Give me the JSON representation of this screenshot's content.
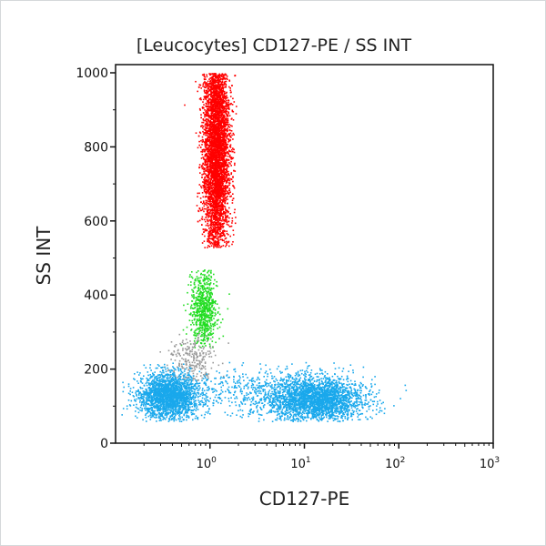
{
  "chart_data": {
    "type": "scatter",
    "title": "[Leucocytes] CD127-PE / SS INT",
    "xlabel": "CD127-PE",
    "ylabel": "SS INT",
    "x_scale": "log",
    "xlim": [
      0.1,
      1000
    ],
    "ylim": [
      0,
      1000
    ],
    "x_ticks": [
      {
        "base": "10",
        "exp": "0",
        "value": 1
      },
      {
        "base": "10",
        "exp": "1",
        "value": 10
      },
      {
        "base": "10",
        "exp": "2",
        "value": 100
      },
      {
        "base": "10",
        "exp": "3",
        "value": 1000
      }
    ],
    "y_ticks": [
      "0",
      "200",
      "400",
      "600",
      "800",
      "1000"
    ],
    "grid": false,
    "legend": "none",
    "populations": [
      {
        "color": "#ff0000",
        "x_center": 1.15,
        "x_log_sd": 0.07,
        "y_center": 800,
        "y_sd": 150,
        "y_range": [
          530,
          1000
        ],
        "count": 4500
      },
      {
        "color": "#22dd22",
        "x_center": 0.85,
        "x_log_sd": 0.07,
        "y_center": 360,
        "y_sd": 55,
        "y_range": [
          260,
          470
        ],
        "count": 700
      },
      {
        "color": "#9a9a9a",
        "x_center": 0.62,
        "x_log_sd": 0.12,
        "y_center": 230,
        "y_sd": 35,
        "y_range": [
          170,
          300
        ],
        "count": 250
      },
      {
        "color": "#19a8ec",
        "x_center": 0.36,
        "x_log_sd": 0.16,
        "y_center": 130,
        "y_sd": 30,
        "y_range": [
          60,
          220
        ],
        "count": 2200
      },
      {
        "color": "#19a8ec",
        "x_center": 13,
        "x_log_sd": 0.25,
        "y_center": 120,
        "y_sd": 30,
        "y_range": [
          60,
          220
        ],
        "count": 2600
      },
      {
        "color": "#19a8ec",
        "x_center": 2.5,
        "x_log_sd": 0.3,
        "y_center": 140,
        "y_sd": 35,
        "y_range": [
          60,
          220
        ],
        "count": 400
      }
    ]
  }
}
